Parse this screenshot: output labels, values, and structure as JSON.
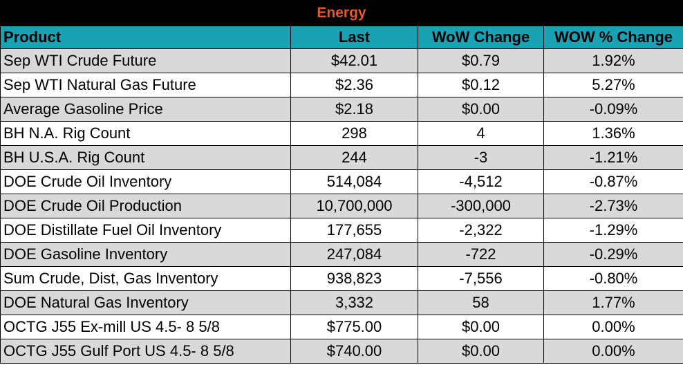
{
  "title": "Energy",
  "colors": {
    "title_bg": "#000000",
    "title_text": "#e8562b",
    "header_bg": "#18a2b4",
    "stripe": "#d9d9d9"
  },
  "headers": [
    "Product",
    "Last",
    "WoW Change",
    "WOW % Change"
  ],
  "rows": [
    [
      "Sep WTI Crude Future",
      "$42.01",
      "$0.79",
      "1.92%"
    ],
    [
      "Sep WTI Natural Gas Future",
      "$2.36",
      "$0.12",
      "5.27%"
    ],
    [
      "Average Gasoline Price",
      "$2.18",
      "$0.00",
      "-0.09%"
    ],
    [
      "BH N.A. Rig Count",
      "298",
      "4",
      "1.36%"
    ],
    [
      "BH U.S.A. Rig Count",
      "244",
      "-3",
      "-1.21%"
    ],
    [
      "DOE Crude Oil Inventory",
      "514,084",
      "-4,512",
      "-0.87%"
    ],
    [
      "DOE Crude Oil Production",
      "10,700,000",
      "-300,000",
      "-2.73%"
    ],
    [
      "DOE Distillate Fuel Oil Inventory",
      "177,655",
      "-2,322",
      "-1.29%"
    ],
    [
      "DOE Gasoline Inventory",
      "247,084",
      "-722",
      "-0.29%"
    ],
    [
      "Sum Crude, Dist, Gas Inventory",
      "938,823",
      "-7,556",
      "-0.80%"
    ],
    [
      "DOE Natural Gas Inventory",
      "3,332",
      "58",
      "1.77%"
    ],
    [
      "OCTG J55 Ex-mill US 4.5- 8 5/8",
      "$775.00",
      "$0.00",
      "0.00%"
    ],
    [
      "OCTG J55 Gulf Port US 4.5- 8 5/8",
      "$740.00",
      "$0.00",
      "0.00%"
    ]
  ]
}
